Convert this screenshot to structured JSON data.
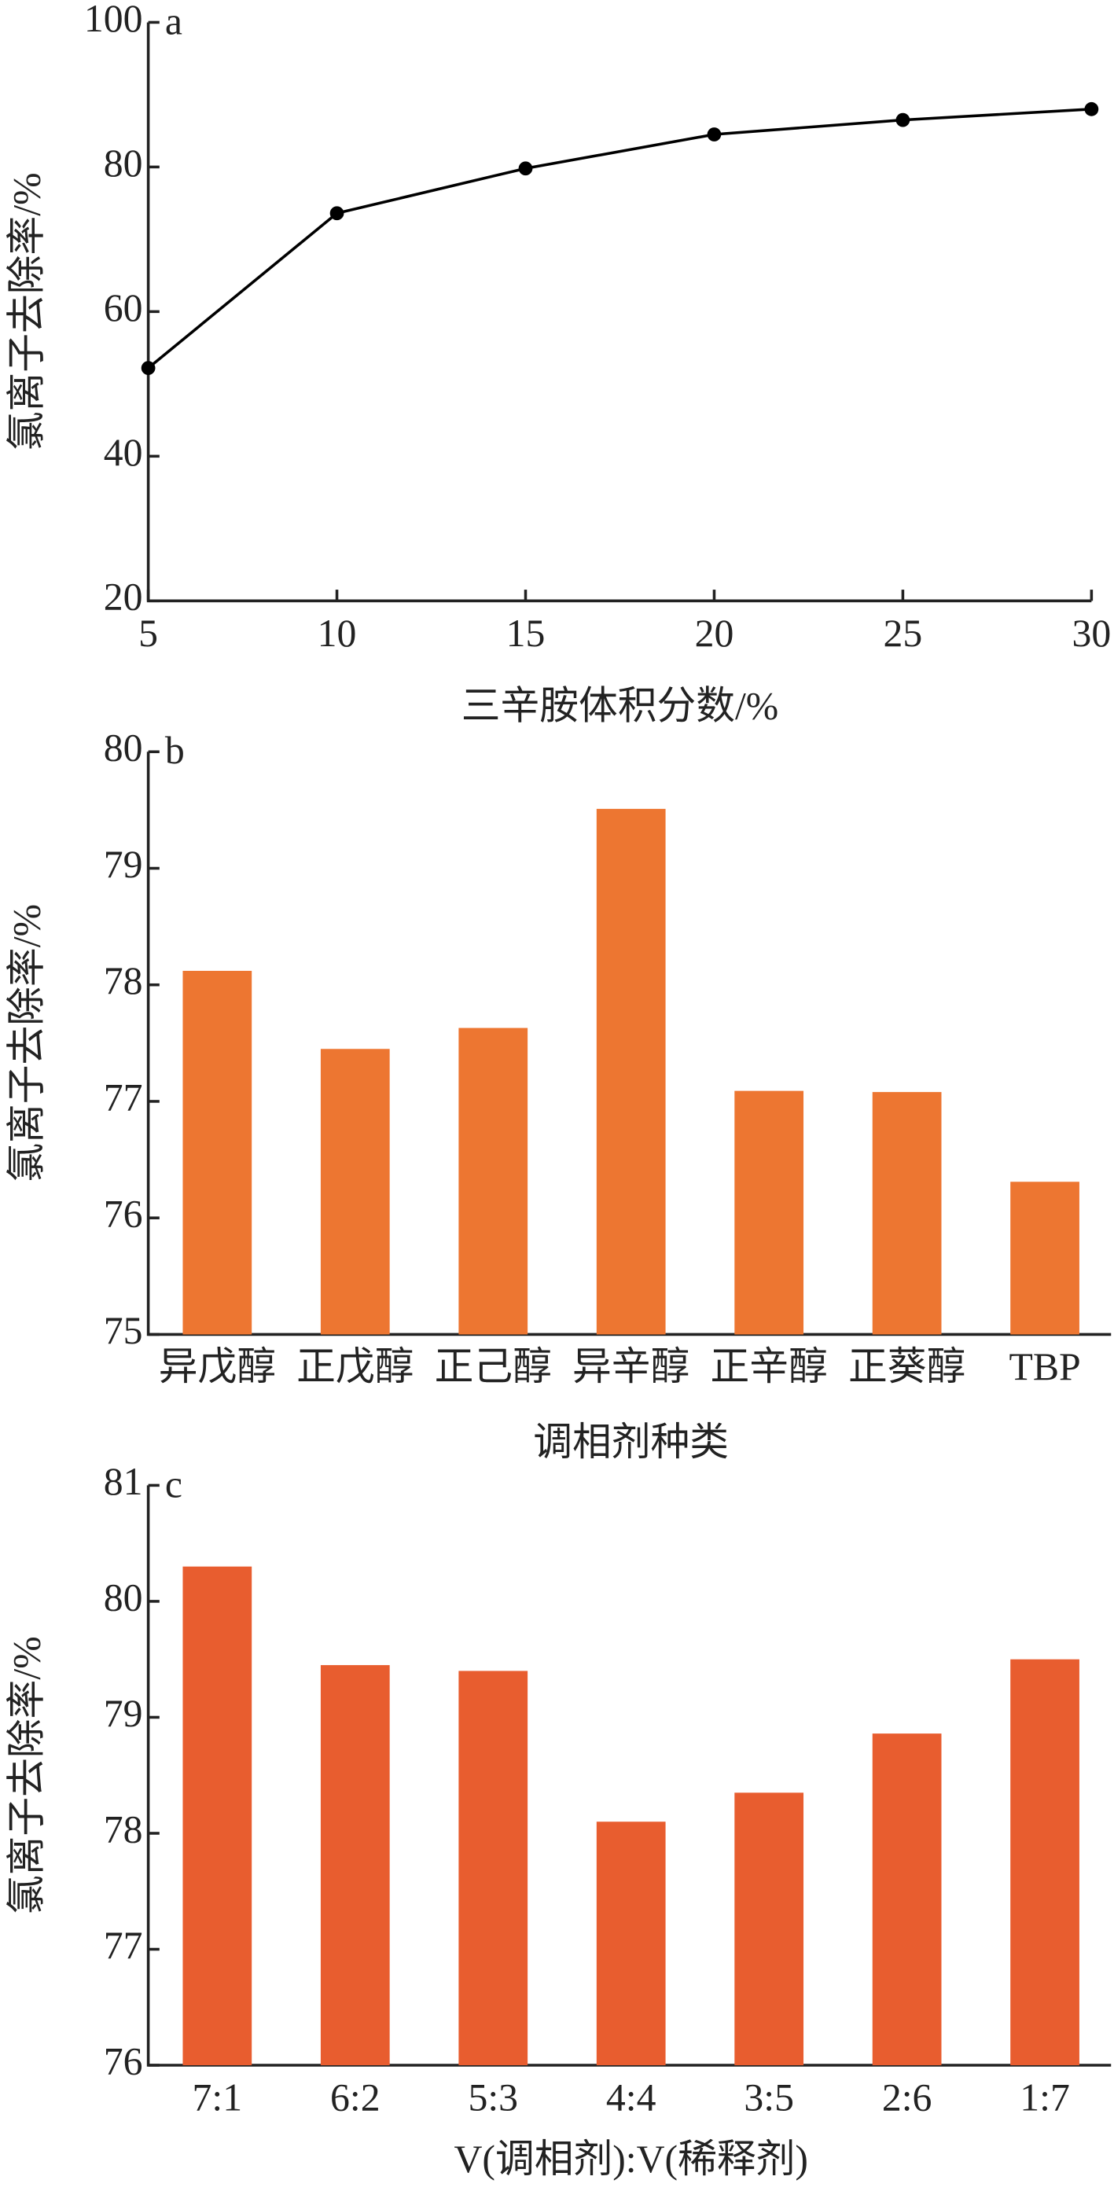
{
  "chart_data": [
    {
      "type": "line",
      "panel_label": "a",
      "y_label": "氯离子去除率/%",
      "x_label": "三辛胺体积分数/%",
      "x": [
        5,
        10,
        15,
        20,
        25,
        30
      ],
      "values": [
        52.2,
        73.6,
        79.8,
        84.5,
        86.5,
        88
      ],
      "color": "#000000",
      "xlim": [
        5,
        30
      ],
      "xticks": [
        5,
        10,
        15,
        20,
        25,
        30
      ],
      "ylim": [
        20,
        100
      ],
      "yticks": [
        20,
        40,
        60,
        80,
        100
      ]
    },
    {
      "type": "bar",
      "panel_label": "b",
      "y_label": "氯离子去除率/%",
      "x_label": "调相剂种类",
      "categories": [
        "异戊醇",
        "正戊醇",
        "正己醇",
        "异辛醇",
        "正辛醇",
        "正葵醇",
        "TBP"
      ],
      "values": [
        78.12,
        77.45,
        77.63,
        79.51,
        77.09,
        77.08,
        76.31
      ],
      "color": "#ed7631",
      "ylim": [
        75,
        80
      ],
      "yticks": [
        75,
        76,
        77,
        78,
        79,
        80
      ]
    },
    {
      "type": "bar",
      "panel_label": "c",
      "y_label": "氯离子去除率/%",
      "x_label": "V(调相剂):V(稀释剂)",
      "categories": [
        "7:1",
        "6:2",
        "5:3",
        "4:4",
        "3:5",
        "2:6",
        "1:7"
      ],
      "values": [
        80.3,
        79.45,
        79.4,
        78.1,
        78.35,
        78.86,
        79.5
      ],
      "color": "#e85d2f",
      "ylim": [
        76,
        81
      ],
      "yticks": [
        76,
        77,
        78,
        79,
        80,
        81
      ]
    }
  ]
}
